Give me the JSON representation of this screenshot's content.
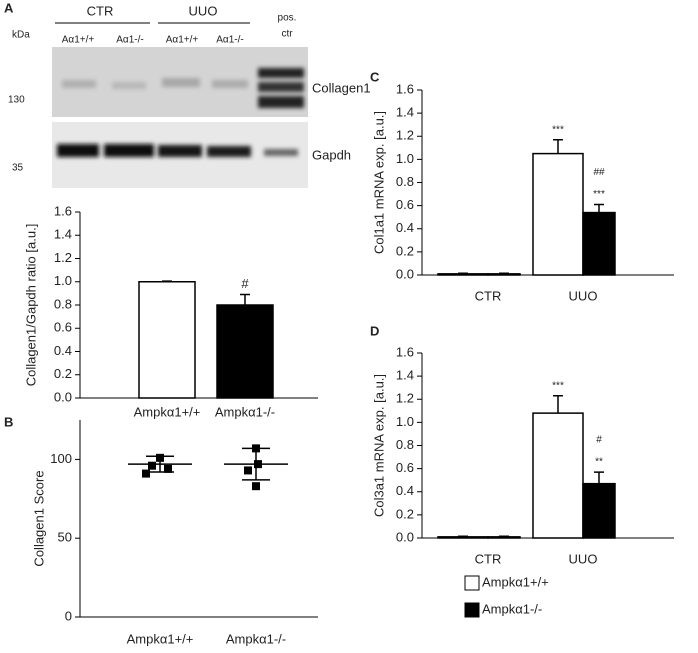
{
  "blot": {
    "panel_label": "A",
    "unit": "kDa",
    "groups": [
      "CTR",
      "UUO"
    ],
    "pos_ctr": [
      "pos.",
      "ctr"
    ],
    "lanes": [
      "Aα1+/+",
      "Aα1-/-",
      "Aα1+/+",
      "Aα1-/-"
    ],
    "markers": [
      "130",
      "35"
    ],
    "proteins": [
      "Collagen1",
      "Gapdh"
    ]
  },
  "chart_data": [
    {
      "type": "bar",
      "ylabel": "Collagen1/Gapdh ratio [a.u.]",
      "categories": [
        "Ampkα1+/+",
        "Ampkα1-/-"
      ],
      "values": [
        1.0,
        0.8
      ],
      "errors": [
        0.005,
        0.09
      ],
      "colors": [
        "#ffffff",
        "#000000"
      ],
      "significance": [
        null,
        "#"
      ],
      "ylim": [
        0,
        1.6
      ],
      "yticks": [
        {
          "value": 0,
          "label": "0.0"
        },
        {
          "value": 0.2,
          "label": "0.2"
        },
        {
          "value": 0.4,
          "label": "0.4"
        },
        {
          "value": 0.6,
          "label": "0.6"
        },
        {
          "value": 0.8,
          "label": "0.8"
        },
        {
          "value": 1,
          "label": "1.0"
        },
        {
          "value": 1.2,
          "label": "1.2"
        },
        {
          "value": 1.4,
          "label": "1.4"
        },
        {
          "value": 1.6,
          "label": "1.6"
        }
      ]
    },
    {
      "type": "dot",
      "panel_label": "B",
      "ylabel": "Collagen1 Score",
      "categories": [
        "Ampkα1+/+",
        "Ampkα1-/-"
      ],
      "values": [
        [
          101,
          96,
          94,
          91
        ],
        [
          107,
          97,
          93,
          83
        ]
      ],
      "means": [
        97,
        97
      ],
      "sems": [
        5,
        10
      ],
      "ylim": [
        0,
        125
      ],
      "yticks": [
        0,
        50,
        100
      ]
    },
    {
      "type": "grouped_bar",
      "panel_label": "C",
      "ylabel": "Col1a1 mRNA exp. [a.u.]",
      "categories": [
        "CTR",
        "UUO"
      ],
      "series": [
        {
          "name": "Ampkα1+/+",
          "color": "#ffffff",
          "values": [
            0.01,
            1.05
          ],
          "errors": [
            0.005,
            0.12
          ],
          "significance": [
            null,
            [
              "***"
            ]
          ]
        },
        {
          "name": "Ampkα1-/-",
          "color": "#000000",
          "values": [
            0.01,
            0.54
          ],
          "errors": [
            0.005,
            0.07
          ],
          "significance": [
            null,
            [
              "##",
              "***"
            ]
          ]
        }
      ],
      "ylim": [
        0,
        1.6
      ],
      "yticks": [
        {
          "value": 0,
          "label": "0.0"
        },
        {
          "value": 0.2,
          "label": "0.2"
        },
        {
          "value": 0.4,
          "label": "0.4"
        },
        {
          "value": 0.6,
          "label": "0.6"
        },
        {
          "value": 0.8,
          "label": "0.8"
        },
        {
          "value": 1,
          "label": "1.0"
        },
        {
          "value": 1.2,
          "label": "1.2"
        },
        {
          "value": 1.4,
          "label": "1.4"
        },
        {
          "value": 1.6,
          "label": "1.6"
        }
      ]
    },
    {
      "type": "grouped_bar",
      "panel_label": "D",
      "ylabel": "Col3a1 mRNA exp. [a.u.]",
      "categories": [
        "CTR",
        "UUO"
      ],
      "series": [
        {
          "color": "#ffffff",
          "values": [
            0.01,
            1.08
          ],
          "errors": [
            0.005,
            0.15
          ],
          "significance": [
            null,
            [
              "***"
            ]
          ]
        },
        {
          "color": "#000000",
          "values": [
            0.01,
            0.47
          ],
          "errors": [
            0.005,
            0.1
          ],
          "significance": [
            null,
            [
              "#",
              "**"
            ]
          ]
        }
      ],
      "ylim": [
        0,
        1.6
      ],
      "yticks": [
        {
          "value": 0,
          "label": "0.0"
        },
        {
          "value": 0.2,
          "label": "0.2"
        },
        {
          "value": 0.4,
          "label": "0.4"
        },
        {
          "value": 0.6,
          "label": "0.6"
        },
        {
          "value": 0.8,
          "label": "0.8"
        },
        {
          "value": 1,
          "label": "1.0"
        },
        {
          "value": 1.2,
          "label": "1.2"
        },
        {
          "value": 1.4,
          "label": "1.4"
        },
        {
          "value": 1.6,
          "label": "1.6"
        }
      ]
    }
  ]
}
